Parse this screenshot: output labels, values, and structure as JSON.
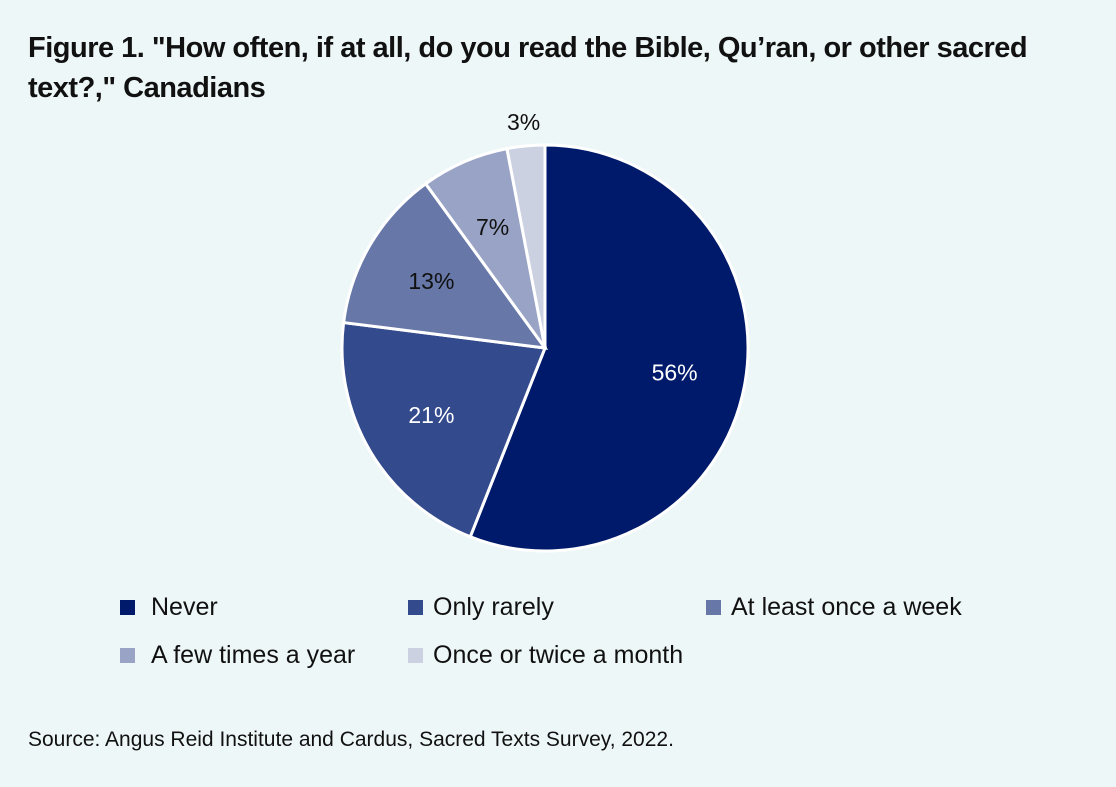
{
  "chart_data": {
    "type": "pie",
    "title": "Figure 1. \"How often, if at all, do you read the Bible, Qu’ran, or other sacred text?,\" Canadians",
    "categories": [
      "Never",
      "Only rarely",
      "At least once a week",
      "A few times a year",
      "Once or twice a month"
    ],
    "values": [
      56,
      21,
      13,
      7,
      3
    ],
    "labels": [
      "56%",
      "21%",
      "13%",
      "7%",
      "3%"
    ],
    "colors": [
      "#001a6b",
      "#334a8c",
      "#6677a8",
      "#99a3c5",
      "#ccd1e2"
    ],
    "label_colors": [
      "#ffffff",
      "#ffffff",
      "#111111",
      "#111111",
      "#111111"
    ],
    "legend_position": "bottom",
    "source": "Source: Angus Reid Institute and Cardus, Sacred Texts Survey, 2022."
  }
}
